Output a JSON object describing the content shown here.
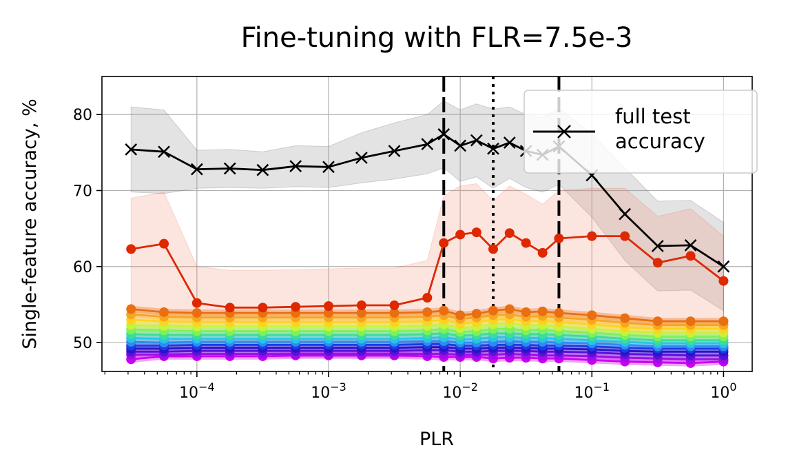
{
  "chart_data": {
    "type": "line",
    "title": "Fine-tuning with FLR=7.5e-3",
    "xlabel": "PLR",
    "ylabel": "Single-feature accuracy, %",
    "xscale": "log",
    "xlim": [
      1.9e-05,
      1.65
    ],
    "ylim": [
      46.2,
      85
    ],
    "grid": true,
    "legend_position": "top-right",
    "y_ticks": [
      50,
      60,
      70,
      80
    ],
    "x_ticks": [
      {
        "value": 0.0001,
        "base": "10",
        "exp": "−4"
      },
      {
        "value": 0.001,
        "base": "10",
        "exp": "−3"
      },
      {
        "value": 0.01,
        "base": "10",
        "exp": "−2"
      },
      {
        "value": 0.1,
        "base": "10",
        "exp": "−1"
      },
      {
        "value": 1,
        "base": "10",
        "exp": "0"
      }
    ],
    "vlines": [
      {
        "x": 0.0075,
        "style": "dashed"
      },
      {
        "x": 0.0178,
        "style": "dotted"
      },
      {
        "x": 0.0562,
        "style": "dashed"
      }
    ],
    "x": [
      3.16e-05,
      5.62e-05,
      0.0001,
      0.000178,
      0.000316,
      0.000562,
      0.001,
      0.00178,
      0.00316,
      0.00562,
      0.0075,
      0.01,
      0.0133,
      0.0178,
      0.0237,
      0.0316,
      0.0422,
      0.0562,
      0.1,
      0.178,
      0.316,
      0.562,
      1.0
    ],
    "series": [
      {
        "name": "full test accuracy",
        "color": "#000000",
        "marker": "x",
        "values": [
          75.4,
          75.1,
          72.8,
          72.9,
          72.7,
          73.2,
          73.1,
          74.3,
          75.2,
          76.1,
          77.4,
          75.9,
          76.6,
          75.5,
          76.3,
          75.2,
          74.7,
          75.8,
          72.0,
          66.9,
          62.7,
          62.8,
          60.0
        ],
        "band_low": [
          69.8,
          69.6,
          70.3,
          70.4,
          70.3,
          70.5,
          70.4,
          71.0,
          71.5,
          72.2,
          73.0,
          71.2,
          71.8,
          70.3,
          71.6,
          70.4,
          69.8,
          70.8,
          66.5,
          60.8,
          56.8,
          56.9,
          54.2
        ],
        "band_high": [
          81.0,
          80.6,
          75.3,
          75.4,
          75.1,
          75.9,
          75.8,
          77.6,
          78.9,
          80.0,
          81.8,
          80.6,
          81.4,
          80.7,
          81.0,
          80.0,
          79.6,
          80.8,
          77.5,
          73.0,
          68.6,
          68.7,
          65.8
        ]
      },
      {
        "color": "#dd2800",
        "marker": "o",
        "values": [
          62.3,
          63.0,
          55.2,
          54.6,
          54.6,
          54.7,
          54.8,
          54.9,
          54.9,
          55.9,
          63.1,
          64.2,
          64.5,
          62.3,
          64.4,
          63.1,
          61.8,
          63.7,
          64.0,
          64.0,
          60.5,
          61.4,
          58.1
        ],
        "band_low": [
          49.0,
          49.0,
          50.0,
          50.0,
          50.0,
          50.0,
          50.0,
          50.0,
          50.0,
          50.0,
          50.0,
          50.0,
          50.0,
          50.0,
          50.0,
          50.0,
          50.0,
          50.0,
          50.0,
          50.0,
          50.0,
          50.0,
          50.0
        ],
        "band_high": [
          69.0,
          69.8,
          60.0,
          59.5,
          59.5,
          59.6,
          59.7,
          59.8,
          59.8,
          60.8,
          69.3,
          70.6,
          70.9,
          68.6,
          70.6,
          69.5,
          68.2,
          70.0,
          70.3,
          70.3,
          66.6,
          67.6,
          64.0
        ]
      },
      {
        "color": "#ea6e12",
        "marker": "o",
        "values": [
          54.4,
          54.0,
          53.9,
          53.9,
          53.9,
          53.9,
          53.9,
          53.9,
          53.9,
          54.0,
          54.2,
          53.6,
          53.8,
          54.2,
          54.4,
          54.0,
          54.1,
          53.9,
          53.6,
          53.2,
          52.8,
          52.8,
          52.8
        ]
      },
      {
        "color": "#f5a623",
        "marker": "o",
        "values": [
          53.7,
          53.4,
          53.3,
          53.3,
          53.3,
          53.3,
          53.3,
          53.3,
          53.3,
          53.4,
          53.6,
          53.1,
          53.3,
          53.6,
          53.7,
          53.4,
          53.5,
          53.3,
          53.0,
          52.6,
          52.3,
          52.3,
          52.3
        ]
      },
      {
        "color": "#ffd21f",
        "marker": "o",
        "values": [
          53.0,
          52.8,
          52.7,
          52.7,
          52.7,
          52.7,
          52.7,
          52.7,
          52.7,
          52.8,
          53.0,
          52.5,
          52.7,
          53.0,
          53.1,
          52.8,
          52.9,
          52.7,
          52.4,
          52.0,
          51.8,
          51.8,
          51.8
        ]
      },
      {
        "color": "#c9f23a",
        "marker": "o",
        "values": [
          52.3,
          52.2,
          52.1,
          52.1,
          52.1,
          52.1,
          52.1,
          52.1,
          52.1,
          52.2,
          52.4,
          51.9,
          52.1,
          52.4,
          52.5,
          52.2,
          52.3,
          52.1,
          51.8,
          51.5,
          51.3,
          51.3,
          51.3
        ]
      },
      {
        "color": "#7cf25a",
        "marker": "o",
        "values": [
          51.7,
          51.6,
          51.5,
          51.5,
          51.5,
          51.5,
          51.5,
          51.5,
          51.5,
          51.6,
          51.8,
          51.4,
          51.5,
          51.8,
          51.8,
          51.6,
          51.7,
          51.5,
          51.3,
          51.0,
          50.8,
          50.8,
          50.8
        ]
      },
      {
        "color": "#3ddc97",
        "marker": "o",
        "values": [
          51.1,
          51.0,
          51.0,
          51.0,
          51.0,
          51.0,
          51.0,
          51.0,
          51.0,
          51.1,
          51.2,
          50.9,
          51.0,
          51.2,
          51.2,
          51.1,
          51.1,
          51.0,
          50.8,
          50.5,
          50.3,
          50.3,
          50.3
        ]
      },
      {
        "color": "#27c4e8",
        "marker": "o",
        "values": [
          50.6,
          50.5,
          50.5,
          50.5,
          50.5,
          50.5,
          50.5,
          50.5,
          50.5,
          50.6,
          50.7,
          50.4,
          50.5,
          50.7,
          50.7,
          50.6,
          50.6,
          50.5,
          50.3,
          50.1,
          49.9,
          49.9,
          49.9
        ]
      },
      {
        "color": "#2e8cf0",
        "marker": "o",
        "values": [
          50.1,
          50.0,
          50.1,
          50.1,
          50.1,
          50.1,
          50.1,
          50.1,
          50.1,
          50.2,
          50.2,
          50.0,
          50.0,
          50.1,
          50.2,
          50.1,
          50.1,
          50.0,
          49.9,
          49.7,
          49.5,
          49.5,
          49.5
        ]
      },
      {
        "color": "#1a3ce6",
        "marker": "o",
        "values": [
          49.6,
          49.6,
          49.7,
          49.7,
          49.7,
          49.7,
          49.7,
          49.7,
          49.7,
          49.8,
          49.8,
          49.6,
          49.6,
          49.7,
          49.7,
          49.7,
          49.6,
          49.6,
          49.5,
          49.3,
          49.2,
          49.2,
          49.2
        ]
      },
      {
        "color": "#2a12c8",
        "marker": "o",
        "values": [
          49.2,
          49.2,
          49.3,
          49.3,
          49.3,
          49.3,
          49.3,
          49.3,
          49.3,
          49.4,
          49.4,
          49.2,
          49.2,
          49.3,
          49.3,
          49.3,
          49.2,
          49.2,
          49.1,
          48.9,
          48.8,
          48.8,
          48.8
        ]
      },
      {
        "color": "#5a10d8",
        "marker": "o",
        "values": [
          48.8,
          48.8,
          48.9,
          48.9,
          48.9,
          48.9,
          48.9,
          48.9,
          48.9,
          49.0,
          49.0,
          48.8,
          48.8,
          48.9,
          48.9,
          48.9,
          48.8,
          48.8,
          48.7,
          48.5,
          48.4,
          48.3,
          48.3
        ]
      },
      {
        "color": "#9a0de6",
        "marker": "o",
        "values": [
          48.4,
          48.4,
          48.5,
          48.5,
          48.5,
          48.5,
          48.5,
          48.5,
          48.5,
          48.5,
          48.5,
          48.4,
          48.4,
          48.4,
          48.5,
          48.4,
          48.3,
          48.3,
          48.2,
          48.0,
          47.9,
          47.8,
          47.8
        ]
      },
      {
        "color": "#cc00f0",
        "marker": "o",
        "values": [
          47.8,
          48.2,
          48.2,
          48.2,
          48.2,
          48.3,
          48.3,
          48.3,
          48.3,
          48.2,
          48.1,
          48.1,
          48.1,
          47.9,
          48.0,
          48.0,
          47.9,
          47.9,
          47.7,
          47.5,
          47.4,
          47.3,
          47.5
        ]
      }
    ]
  }
}
